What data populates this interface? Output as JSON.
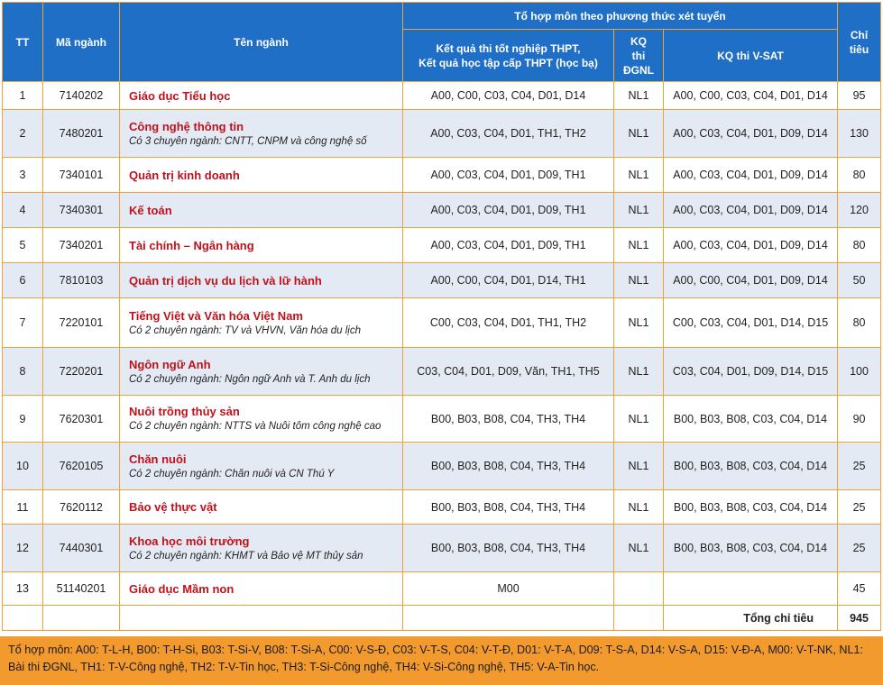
{
  "table": {
    "headers": {
      "tt": "TT",
      "code": "Mã ngành",
      "name": "Tên ngành",
      "group": "Tổ hợp môn theo phương thức xét tuyển",
      "thpt": "Kết quả thi tốt nghiệp THPT,\nKết quả học tập cấp THPT (học bạ)",
      "dgnl": "KQ\nthi\nĐGNL",
      "vsat": "KQ thi V-SAT",
      "quota": "Chỉ\ntiêu"
    },
    "rows": [
      {
        "tt": "1",
        "code": "7140202",
        "name": "Giáo dục Tiểu học",
        "note": "",
        "thpt": "A00, C00, C03, C04, D01, D14",
        "dgnl": "NL1",
        "vsat": "A00, C00, C03, C04, D01, D14",
        "quota": "95"
      },
      {
        "tt": "2",
        "code": "7480201",
        "name": "Công nghệ thông tin",
        "note": "Có 3 chuyên ngành: CNTT, CNPM và công nghệ số",
        "thpt": "A00, C03, C04, D01, TH1, TH2",
        "dgnl": "NL1",
        "vsat": "A00, C03, C04, D01, D09, D14",
        "quota": "130"
      },
      {
        "tt": "3",
        "code": "7340101",
        "name": "Quản trị kinh doanh",
        "note": "",
        "thpt": "A00, C03, C04, D01, D09, TH1",
        "dgnl": "NL1",
        "vsat": "A00, C03, C04, D01, D09, D14",
        "quota": "80"
      },
      {
        "tt": "4",
        "code": "7340301",
        "name": "Kế toán",
        "note": "",
        "thpt": "A00, C03, C04, D01, D09, TH1",
        "dgnl": "NL1",
        "vsat": "A00, C03, C04, D01, D09, D14",
        "quota": "120"
      },
      {
        "tt": "5",
        "code": "7340201",
        "name": "Tài chính – Ngân hàng",
        "note": "",
        "thpt": "A00, C03, C04, D01, D09, TH1",
        "dgnl": "NL1",
        "vsat": "A00, C03, C04, D01, D09, D14",
        "quota": "80"
      },
      {
        "tt": "6",
        "code": "7810103",
        "name": "Quản trị dịch vụ du lịch và lữ hành",
        "note": "",
        "thpt": "A00, C00, C04, D01, D14, TH1",
        "dgnl": "NL1",
        "vsat": "A00, C00, C04, D01, D09, D14",
        "quota": "50"
      },
      {
        "tt": "7",
        "code": "7220101",
        "name": "Tiếng Việt và Văn hóa Việt Nam",
        "note": "Có 2 chuyên ngành: TV và VHVN, Văn hóa du lịch",
        "thpt": "C00, C03, C04, D01, TH1, TH2",
        "dgnl": "NL1",
        "vsat": "C00, C03, C04, D01, D14, D15",
        "quota": "80"
      },
      {
        "tt": "8",
        "code": "7220201",
        "name": "Ngôn ngữ Anh",
        "note": "Có 2 chuyên ngành:  Ngôn ngữ Anh và T. Anh du lịch",
        "thpt": "C03, C04, D01, D09, Văn, TH1, TH5",
        "dgnl": "NL1",
        "vsat": "C03, C04, D01, D09, D14, D15",
        "quota": "100"
      },
      {
        "tt": "9",
        "code": "7620301",
        "name": "Nuôi trồng thủy sản",
        "note": "Có 2 chuyên ngành: NTTS và Nuôi tôm công nghệ cao",
        "thpt": "B00, B03, B08, C04, TH3, TH4",
        "dgnl": "NL1",
        "vsat": "B00, B03, B08, C03, C04, D14",
        "quota": "90"
      },
      {
        "tt": "10",
        "code": "7620105",
        "name": "Chăn nuôi",
        "note": "Có 2 chuyên ngành: Chăn nuôi và CN Thú Y",
        "thpt": "B00, B03, B08, C04, TH3, TH4",
        "dgnl": "NL1",
        "vsat": "B00, B03, B08, C03, C04, D14",
        "quota": "25"
      },
      {
        "tt": "11",
        "code": "7620112",
        "name": "Bảo vệ thực vật",
        "note": "",
        "thpt": "B00, B03, B08, C04, TH3, TH4",
        "dgnl": "NL1",
        "vsat": "B00, B03, B08, C03, C04, D14",
        "quota": "25"
      },
      {
        "tt": "12",
        "code": "7440301",
        "name": "Khoa học môi trường",
        "note": "Có 2 chuyên ngành: KHMT và Bảo vệ MT thủy sản",
        "thpt": "B00, B03, B08, C04, TH3, TH4",
        "dgnl": "NL1",
        "vsat": "B00, B03, B08, C03, C04, D14",
        "quota": "25"
      },
      {
        "tt": "13",
        "code": "51140201",
        "name": "Giáo dục Mầm non",
        "note": "",
        "thpt": "M00",
        "dgnl": "",
        "vsat": "",
        "quota": "45"
      }
    ],
    "total_label": "Tổng chỉ tiêu",
    "total_value": "945"
  },
  "legend": "Tổ hợp môn: A00: T-L-H, B00: T-H-Si, B03: T-Si-V, B08: T-Si-A,  C00: V-S-Đ, C03: V-T-S, C04: V-T-Đ, D01: V-T-A, D09: T-S-A, D14: V-S-A, D15: V-Đ-A, M00: V-T-NK, NL1: Bài thi ĐGNL, TH1: T-V-Công nghệ, TH2: T-V-Tin học, TH3: T-Si-Công nghệ, TH4: V-Si-Công nghệ, TH5: V-A-Tin học.",
  "colors": {
    "header_bg": "#1f6fc6",
    "border": "#f0a23a",
    "major_name": "#c0111b",
    "row_alt": "#e4eaf3",
    "legend_bg": "#f29a2e"
  }
}
